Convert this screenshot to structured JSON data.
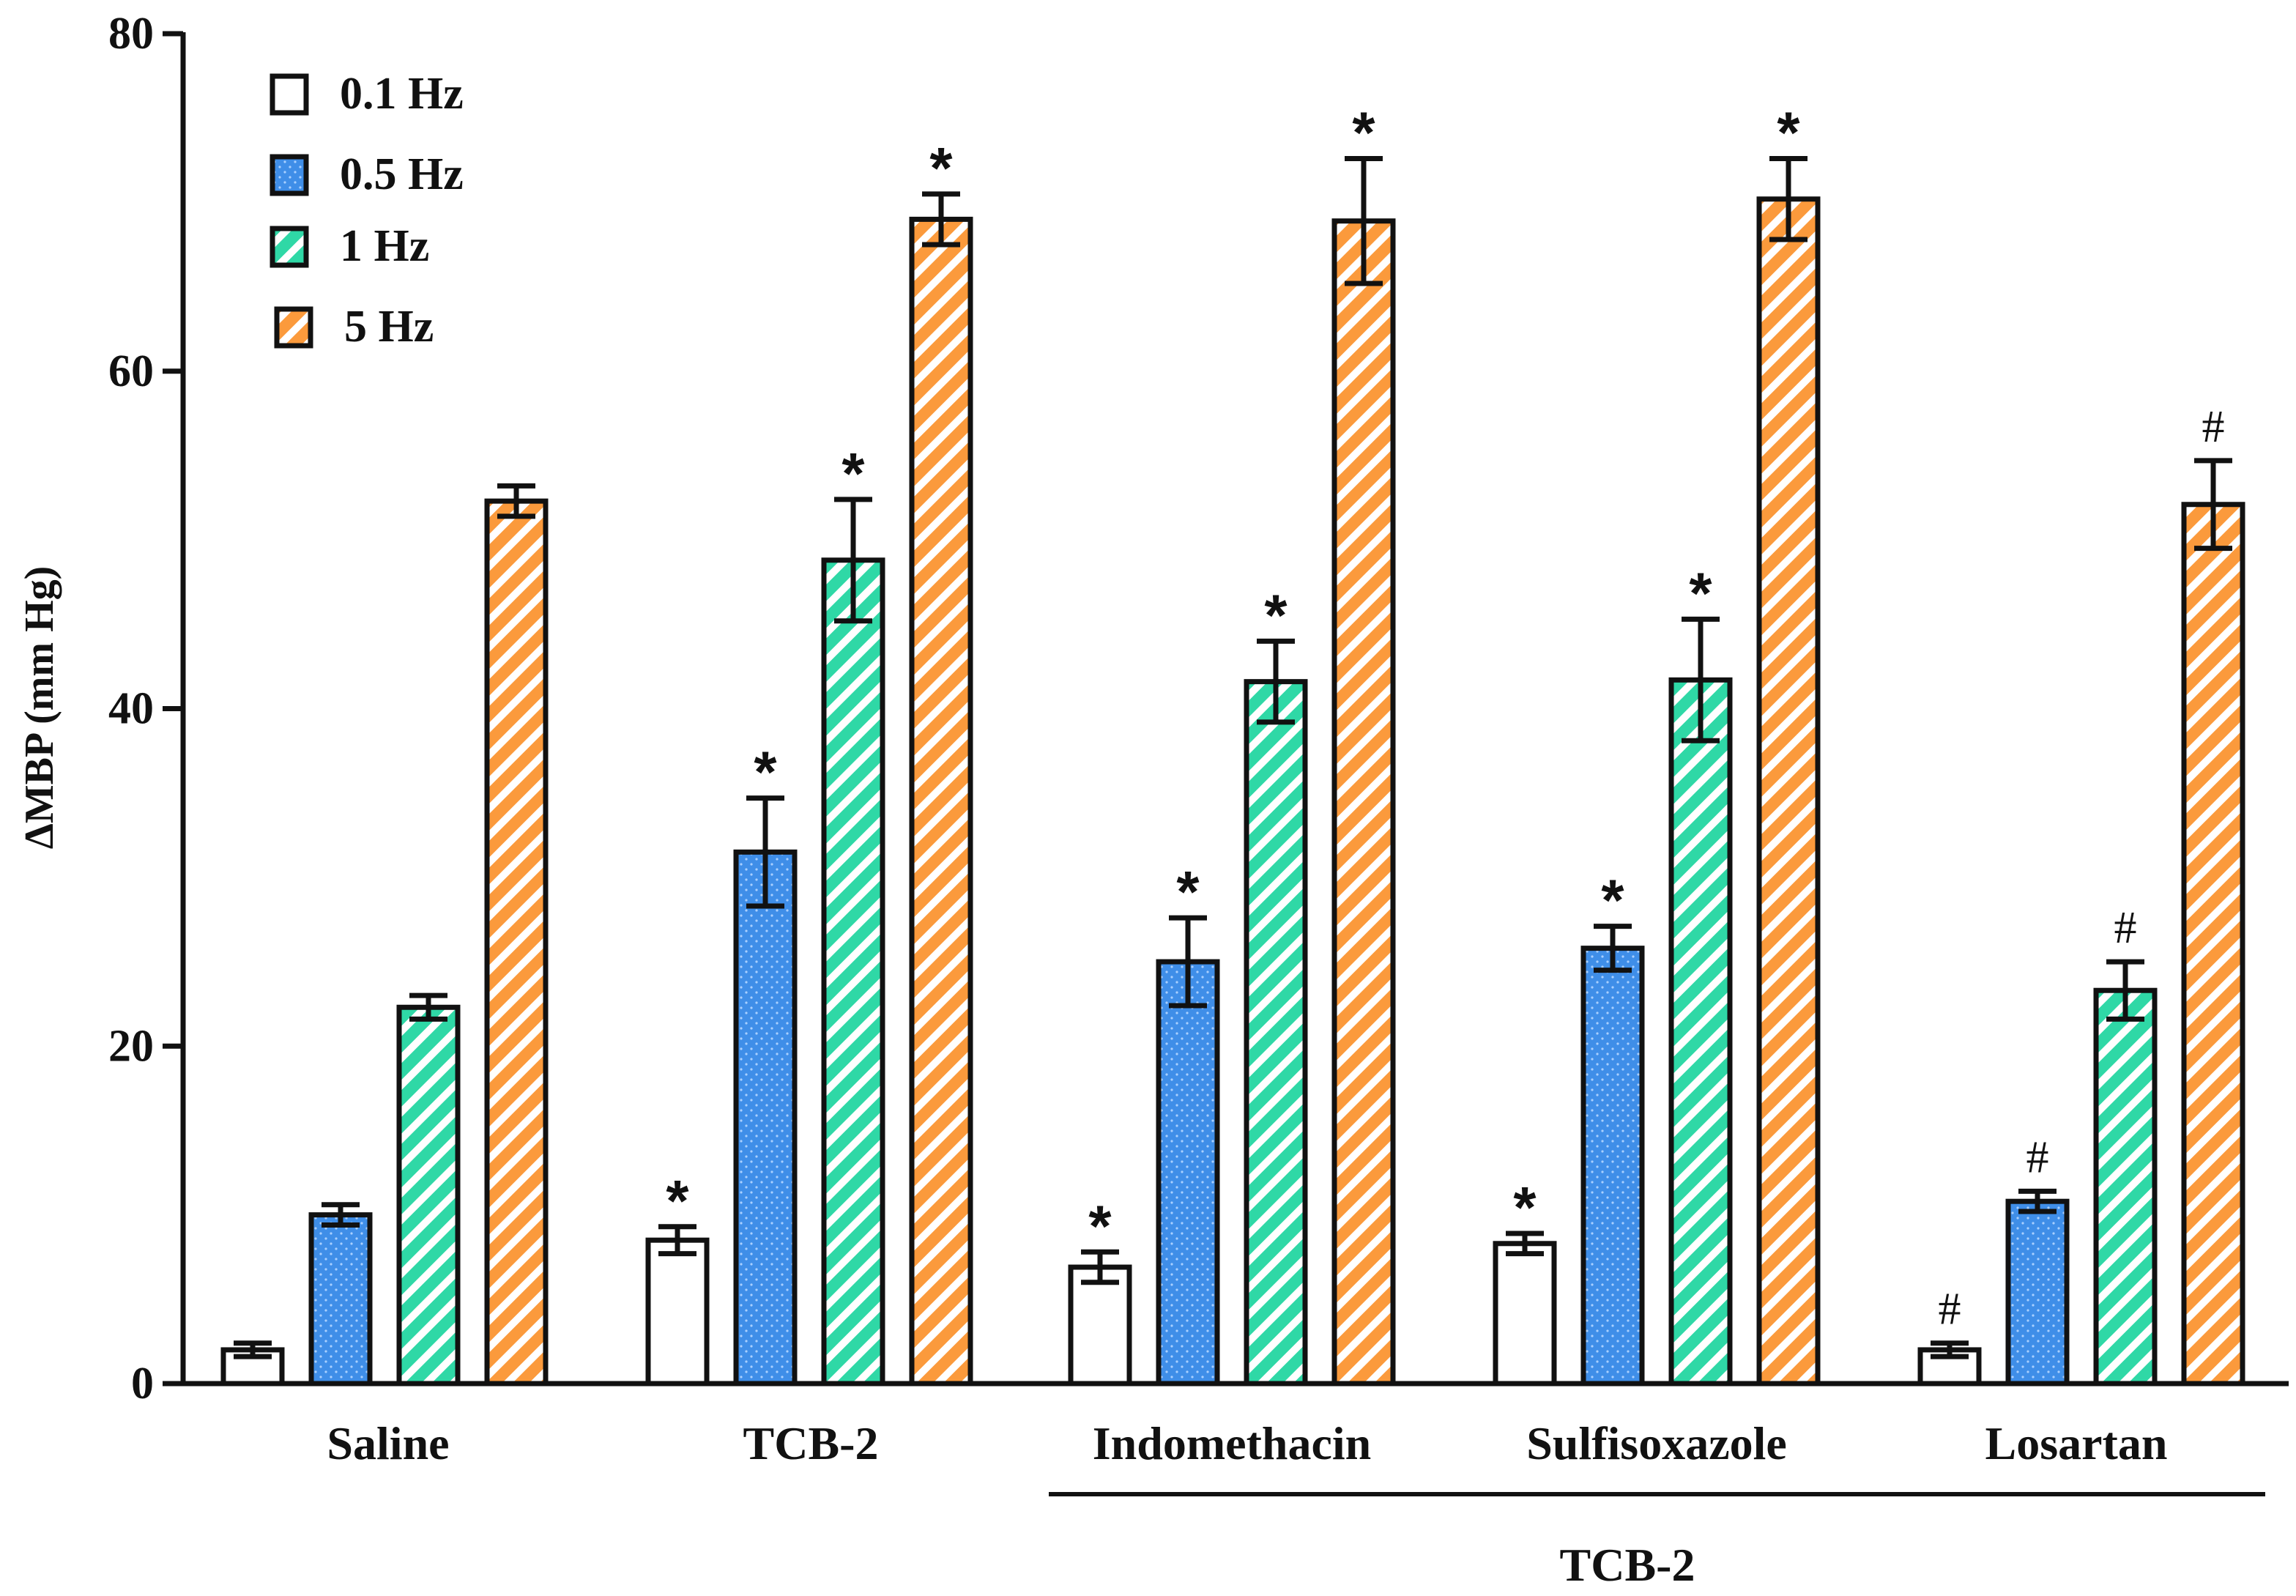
{
  "chart_data": {
    "type": "bar",
    "title": "",
    "xlabel": "",
    "ylabel": "ΔMBP (mm Hg)",
    "ylim": [
      0,
      80
    ],
    "yticks": [
      0,
      20,
      40,
      60,
      80
    ],
    "categories": [
      "Saline",
      "TCB-2",
      "Indomethacin",
      "Sulfisoxazole",
      "Losartan"
    ],
    "group_bracket": {
      "label": "TCB-2",
      "spans": [
        "Indomethacin",
        "Sulfisoxazole",
        "Losartan"
      ]
    },
    "series": [
      {
        "name": "0.1 Hz",
        "key": "s01",
        "fill": "#ffffff",
        "pattern": "none",
        "values": [
          2.0,
          8.5,
          6.9,
          8.3,
          2.0
        ],
        "errors": [
          0.4,
          0.8,
          0.9,
          0.6,
          0.4
        ],
        "marks": [
          "",
          "*",
          "*",
          "*",
          "#"
        ]
      },
      {
        "name": "0.5 Hz",
        "key": "s05",
        "fill": "#3f8ee8",
        "pattern": "dots",
        "values": [
          10.0,
          31.5,
          25.0,
          25.8,
          10.8
        ],
        "errors": [
          0.6,
          3.2,
          2.6,
          1.3,
          0.6
        ],
        "marks": [
          "",
          "*",
          "*",
          "*",
          "#"
        ]
      },
      {
        "name": "1 Hz",
        "key": "s1",
        "fill": "#2fd8a6",
        "pattern": "stripes",
        "values": [
          22.3,
          48.8,
          41.6,
          41.7,
          23.3
        ],
        "errors": [
          0.7,
          3.6,
          2.4,
          3.6,
          1.7
        ],
        "marks": [
          "",
          "*",
          "*",
          "*",
          "#"
        ]
      },
      {
        "name": "5 Hz",
        "key": "s5",
        "fill": "#fb9a3c",
        "pattern": "stripes",
        "values": [
          52.3,
          69.0,
          68.9,
          70.2,
          52.1
        ],
        "errors": [
          0.9,
          1.5,
          3.7,
          2.4,
          2.6
        ],
        "marks": [
          "",
          "*",
          "*",
          "*",
          "#"
        ]
      }
    ],
    "legend": {
      "position": "top-left",
      "entries": [
        "0.1 Hz",
        "0.5 Hz",
        "1 Hz",
        "5 Hz"
      ]
    }
  }
}
